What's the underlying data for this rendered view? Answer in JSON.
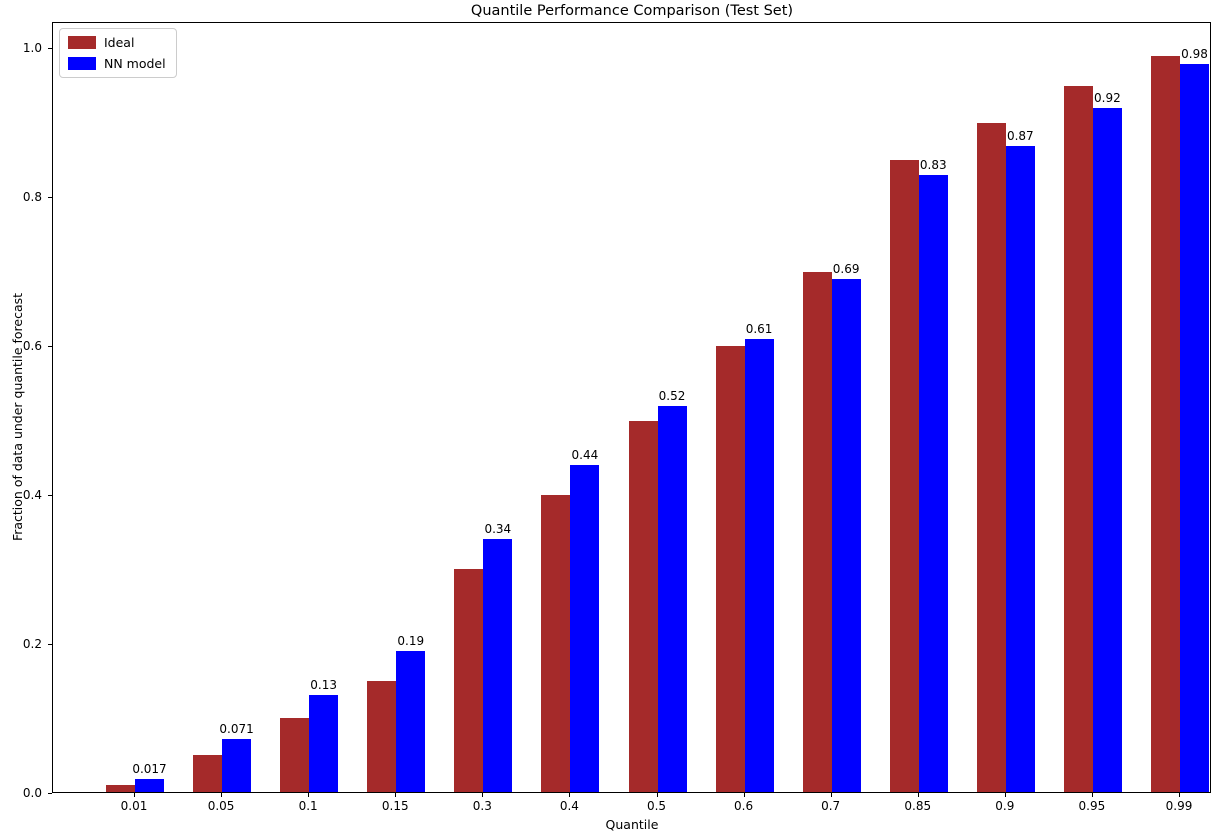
{
  "chart_data": {
    "type": "bar",
    "title": "Quantile Performance Comparison (Test Set)",
    "xlabel": "Quantile",
    "ylabel": "Fraction of data under quantile forecast",
    "categories": [
      "0.01",
      "0.05",
      "0.1",
      "0.15",
      "0.3",
      "0.4",
      "0.5",
      "0.6",
      "0.7",
      "0.85",
      "0.9",
      "0.95",
      "0.99"
    ],
    "series": [
      {
        "name": "Ideal",
        "color": "#a52a2a",
        "values": [
          0.01,
          0.05,
          0.1,
          0.15,
          0.3,
          0.4,
          0.5,
          0.6,
          0.7,
          0.85,
          0.9,
          0.95,
          0.99
        ]
      },
      {
        "name": "NN model",
        "color": "#0000ff",
        "values": [
          0.017,
          0.071,
          0.13,
          0.19,
          0.34,
          0.44,
          0.52,
          0.61,
          0.69,
          0.83,
          0.87,
          0.92,
          0.98
        ]
      }
    ],
    "bar_labels": [
      "0.017",
      "0.071",
      "0.13",
      "0.19",
      "0.34",
      "0.44",
      "0.52",
      "0.61",
      "0.69",
      "0.83",
      "0.87",
      "0.92",
      "0.98"
    ],
    "yticks": [
      "0.0",
      "0.2",
      "0.4",
      "0.6",
      "0.8",
      "1.0"
    ],
    "ylim": [
      0,
      1.035
    ],
    "grid": false,
    "legend_position": "upper left"
  }
}
